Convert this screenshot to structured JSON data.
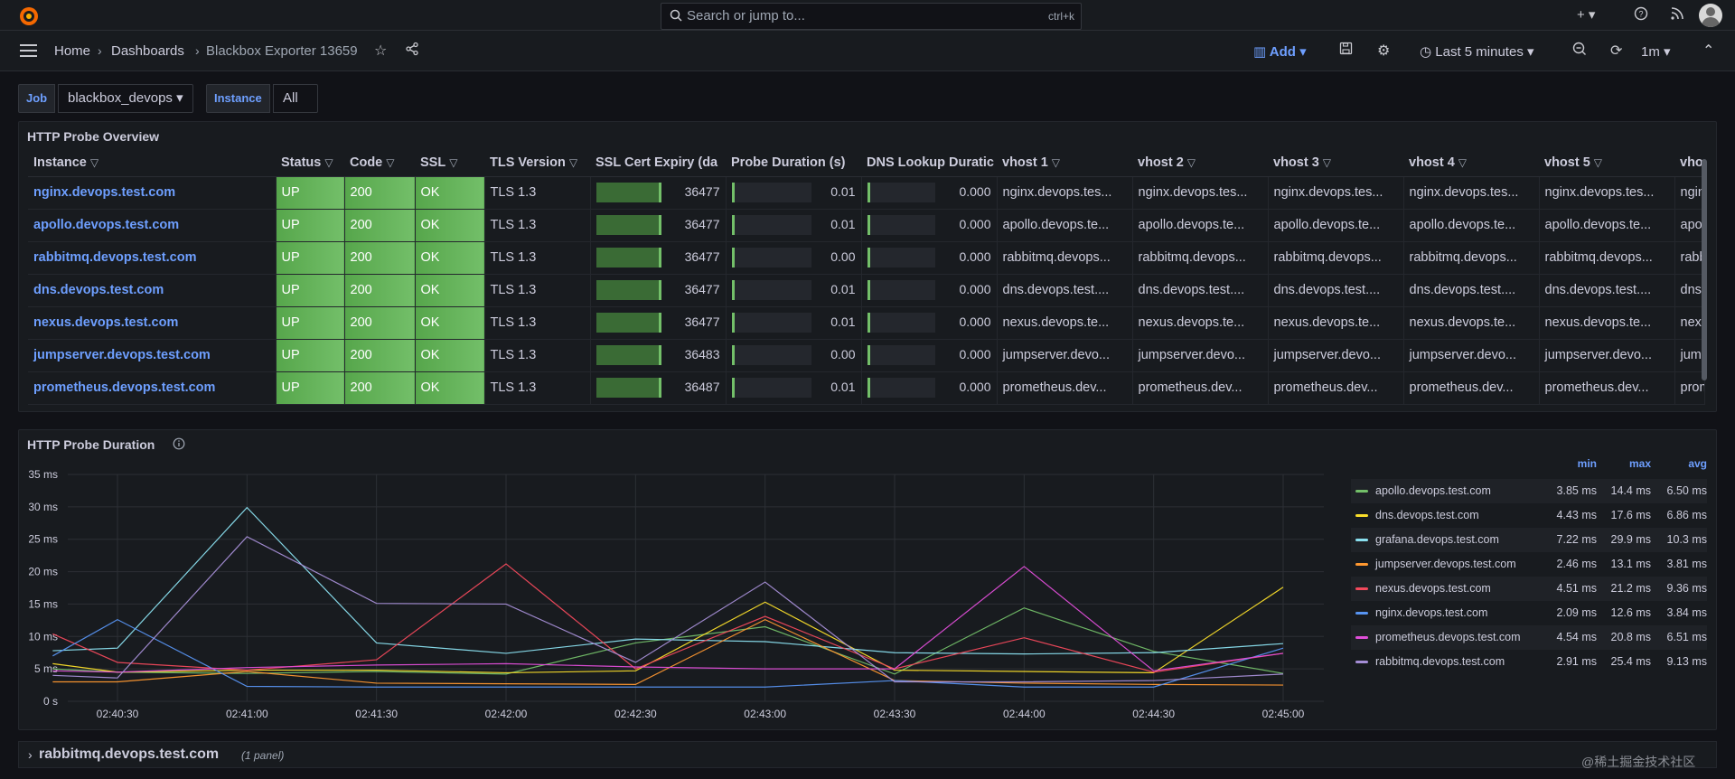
{
  "topbar": {
    "search_placeholder": "Search or jump to...",
    "search_shortcut": "ctrl+k",
    "icons": [
      "plus-icon",
      "help-icon",
      "rss-icon",
      "avatar"
    ]
  },
  "breadcrumb": {
    "home": "Home",
    "dashboards": "Dashboards",
    "current": "Blackbox Exporter 13659"
  },
  "toolbar": {
    "add_label": "Add",
    "time_range": "Last 5 minutes",
    "refresh_interval": "1m"
  },
  "variables": {
    "job_label": "Job",
    "job_value": "blackbox_devops",
    "instance_label": "Instance",
    "instance_value": "All"
  },
  "overview": {
    "title": "HTTP Probe Overview",
    "columns": [
      "Instance",
      "Status",
      "Code",
      "SSL",
      "TLS Version",
      "SSL Cert Expiry (da",
      "Probe Duration (s)",
      "DNS Lookup Duratic",
      "vhost 1",
      "vhost 2",
      "vhost 3",
      "vhost 4",
      "vhost 5",
      "vhos"
    ],
    "rows": [
      {
        "instance": "nginx.devops.test.com",
        "status": "UP",
        "code": "200",
        "ssl": "OK",
        "tls": "TLS 1.3",
        "expiry": "36477",
        "probe": "0.01",
        "dns": "0.000",
        "vhost": "nginx.devops.tes...",
        "vhost_last": "nginx"
      },
      {
        "instance": "apollo.devops.test.com",
        "status": "UP",
        "code": "200",
        "ssl": "OK",
        "tls": "TLS 1.3",
        "expiry": "36477",
        "probe": "0.01",
        "dns": "0.000",
        "vhost": "apollo.devops.te...",
        "vhost_last": "apoll"
      },
      {
        "instance": "rabbitmq.devops.test.com",
        "status": "UP",
        "code": "200",
        "ssl": "OK",
        "tls": "TLS 1.3",
        "expiry": "36477",
        "probe": "0.00",
        "dns": "0.000",
        "vhost": "rabbitmq.devops...",
        "vhost_last": "rabb"
      },
      {
        "instance": "dns.devops.test.com",
        "status": "UP",
        "code": "200",
        "ssl": "OK",
        "tls": "TLS 1.3",
        "expiry": "36477",
        "probe": "0.01",
        "dns": "0.000",
        "vhost": "dns.devops.test....",
        "vhost_last": "dns.d"
      },
      {
        "instance": "nexus.devops.test.com",
        "status": "UP",
        "code": "200",
        "ssl": "OK",
        "tls": "TLS 1.3",
        "expiry": "36477",
        "probe": "0.01",
        "dns": "0.000",
        "vhost": "nexus.devops.te...",
        "vhost_last": "nexu"
      },
      {
        "instance": "jumpserver.devops.test.com",
        "status": "UP",
        "code": "200",
        "ssl": "OK",
        "tls": "TLS 1.3",
        "expiry": "36483",
        "probe": "0.00",
        "dns": "0.000",
        "vhost": "jumpserver.devo...",
        "vhost_last": "jump"
      },
      {
        "instance": "prometheus.devops.test.com",
        "status": "UP",
        "code": "200",
        "ssl": "OK",
        "tls": "TLS 1.3",
        "expiry": "36487",
        "probe": "0.01",
        "dns": "0.000",
        "vhost": "prometheus.dev...",
        "vhost_last": "prom"
      }
    ]
  },
  "duration_panel": {
    "title": "HTTP Probe Duration",
    "legend_headers": [
      "min",
      "max",
      "avg"
    ],
    "legend": [
      {
        "name": "apollo.devops.test.com",
        "min": "3.85 ms",
        "max": "14.4 ms",
        "avg": "6.50 ms"
      },
      {
        "name": "dns.devops.test.com",
        "min": "4.43 ms",
        "max": "17.6 ms",
        "avg": "6.86 ms"
      },
      {
        "name": "grafana.devops.test.com",
        "min": "7.22 ms",
        "max": "29.9 ms",
        "avg": "10.3 ms"
      },
      {
        "name": "jumpserver.devops.test.com",
        "min": "2.46 ms",
        "max": "13.1 ms",
        "avg": "3.81 ms"
      },
      {
        "name": "nexus.devops.test.com",
        "min": "4.51 ms",
        "max": "21.2 ms",
        "avg": "9.36 ms"
      },
      {
        "name": "nginx.devops.test.com",
        "min": "2.09 ms",
        "max": "12.6 ms",
        "avg": "3.84 ms"
      },
      {
        "name": "prometheus.devops.test.com",
        "min": "4.54 ms",
        "max": "20.8 ms",
        "avg": "6.51 ms"
      },
      {
        "name": "rabbitmq.devops.test.com",
        "min": "2.91 ms",
        "max": "25.4 ms",
        "avg": "9.13 ms"
      }
    ]
  },
  "chart_data": {
    "type": "line",
    "title": "HTTP Probe Duration",
    "xlabel": "",
    "ylabel": "",
    "ylim": [
      0,
      35
    ],
    "yticks": [
      "0 s",
      "5 ms",
      "10 ms",
      "15 ms",
      "20 ms",
      "25 ms",
      "30 ms",
      "35 ms"
    ],
    "x": [
      "02:40:15",
      "02:40:30",
      "02:41:00",
      "02:41:30",
      "02:42:00",
      "02:42:30",
      "02:43:00",
      "02:43:30",
      "02:44:00",
      "02:44:30",
      "02:45:00"
    ],
    "xticks": [
      "02:40:30",
      "02:41:00",
      "02:41:30",
      "02:42:00",
      "02:42:30",
      "02:43:00",
      "02:43:30",
      "02:44:00",
      "02:44:30",
      "02:45:00"
    ],
    "grid": true,
    "legend_position": "right",
    "series": [
      {
        "name": "apollo.devops.test.com",
        "color": "#73bf69",
        "values": [
          5,
          4.5,
          4.3,
          4.6,
          4.2,
          9,
          11.5,
          4.2,
          14.4,
          7.7,
          4.3
        ]
      },
      {
        "name": "dns.devops.test.com",
        "color": "#fade2a",
        "values": [
          5.8,
          4.5,
          4.8,
          4.8,
          4.4,
          4.7,
          15.3,
          4.8,
          4.6,
          4.4,
          17.6
        ]
      },
      {
        "name": "grafana.devops.test.com",
        "color": "#8ae0f0",
        "values": [
          7.8,
          8.2,
          29.9,
          9,
          7.4,
          9.6,
          9.2,
          7.5,
          7.3,
          7.5,
          8.9
        ]
      },
      {
        "name": "jumpserver.devops.test.com",
        "color": "#ff9830",
        "values": [
          3,
          3,
          4.6,
          2.8,
          2.7,
          2.6,
          12.6,
          3.2,
          2.8,
          2.6,
          2.5
        ]
      },
      {
        "name": "nexus.devops.test.com",
        "color": "#f2495c",
        "values": [
          10.4,
          6,
          4.8,
          6.4,
          21.2,
          5,
          13.1,
          5,
          9.8,
          4.5,
          7.4
        ]
      },
      {
        "name": "nginx.devops.test.com",
        "color": "#5794f2",
        "values": [
          7,
          12.6,
          2.3,
          2.2,
          2.2,
          2.2,
          2.2,
          3.2,
          2.2,
          2.2,
          8.2
        ]
      },
      {
        "name": "prometheus.devops.test.com",
        "color": "#e04ed9",
        "values": [
          4.7,
          4.5,
          5.2,
          5.6,
          5.8,
          5.3,
          5,
          5,
          20.8,
          4.7,
          7.4
        ]
      },
      {
        "name": "rabbitmq.devops.test.com",
        "color": "#a58ed6",
        "values": [
          4,
          3.6,
          25.4,
          15.1,
          15,
          6,
          18.4,
          3,
          3,
          3.2,
          4.2
        ]
      }
    ]
  },
  "collapsed_row": {
    "title": "rabbitmq.devops.test.com",
    "count": "(1 panel)"
  },
  "watermark": "@稀土掘金技术社区"
}
